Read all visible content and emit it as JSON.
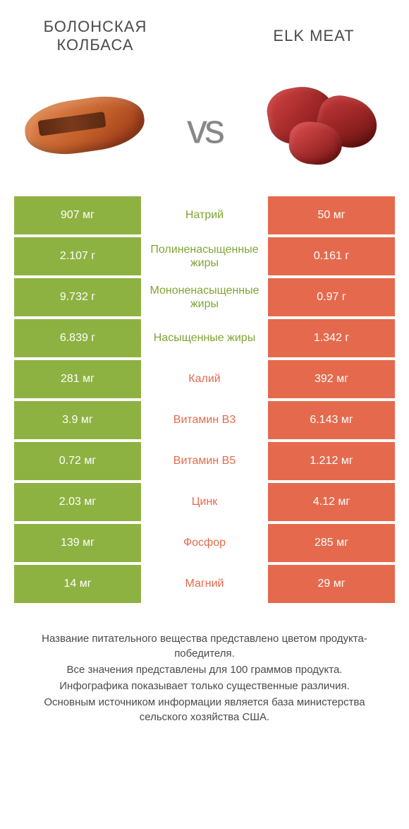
{
  "title_left": "БОЛОНСКАЯ КОЛБАСА",
  "title_right": "ELK MEAT",
  "vs_text": "vs",
  "colors": {
    "green": "#8db242",
    "orange": "#e56a4d",
    "label_green": "#7fa533",
    "label_orange": "#e56a4d"
  },
  "rows": [
    {
      "left": "907 мг",
      "label": "Натрий",
      "right": "50 мг",
      "winner": "left"
    },
    {
      "left": "2.107 г",
      "label": "Полиненасыщенные жиры",
      "right": "0.161 г",
      "winner": "left"
    },
    {
      "left": "9.732 г",
      "label": "Мононенасыщенные жиры",
      "right": "0.97 г",
      "winner": "left"
    },
    {
      "left": "6.839 г",
      "label": "Насыщенные жиры",
      "right": "1.342 г",
      "winner": "left"
    },
    {
      "left": "281 мг",
      "label": "Калий",
      "right": "392 мг",
      "winner": "right"
    },
    {
      "left": "3.9 мг",
      "label": "Витамин B3",
      "right": "6.143 мг",
      "winner": "right"
    },
    {
      "left": "0.72 мг",
      "label": "Витамин B5",
      "right": "1.212 мг",
      "winner": "right"
    },
    {
      "left": "2.03 мг",
      "label": "Цинк",
      "right": "4.12 мг",
      "winner": "right"
    },
    {
      "left": "139 мг",
      "label": "Фосфор",
      "right": "285 мг",
      "winner": "right"
    },
    {
      "left": "14 мг",
      "label": "Магний",
      "right": "29 мг",
      "winner": "right"
    }
  ],
  "footer": {
    "line1": "Название питательного вещества представлено цветом продукта-победителя.",
    "line2": "Все значения представлены для 100 граммов продукта.",
    "line3": "Инфографика показывает только существенные различия.",
    "line4": "Основным источником информации является база министерства сельского хозяйства США."
  }
}
